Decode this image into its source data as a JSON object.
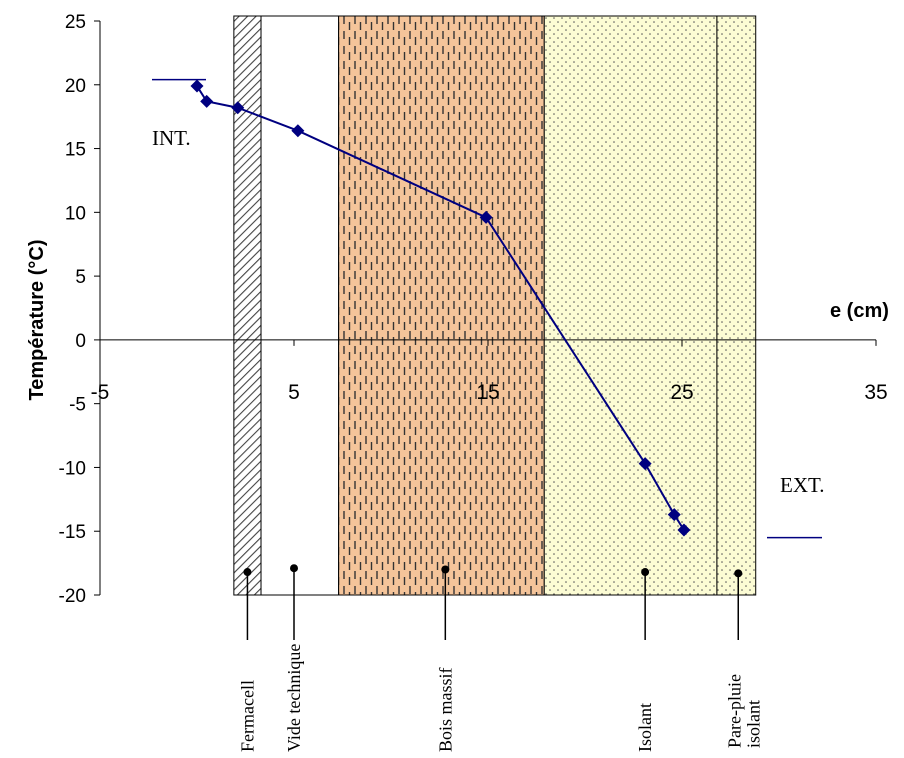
{
  "chart_data": {
    "type": "line",
    "title": "",
    "xlabel": "e (cm)",
    "ylabel": "Température (°C)",
    "xlim": [
      -5,
      35
    ],
    "ylim": [
      -20,
      25
    ],
    "x_ticks": [
      "-5",
      "5",
      "15",
      "25",
      "35"
    ],
    "y_ticks": [
      "25",
      "20",
      "15",
      "10",
      "5",
      "0",
      "-5",
      "-10",
      "-15",
      "-20"
    ],
    "grid": false,
    "series": [
      {
        "name": "",
        "color": "#000080",
        "x": [
          0,
          0.5,
          2.1,
          5.2,
          14.9,
          23.1,
          24.6,
          25.1
        ],
        "y": [
          19.9,
          18.7,
          18.2,
          16.4,
          9.6,
          -9.7,
          -13.7,
          -14.9
        ]
      }
    ],
    "layers": [
      {
        "name": "Fermacell",
        "x_start": 1.9,
        "x_end": 3.3,
        "fill": "#ffffff",
        "pattern": "hatch",
        "marker_x": 2.6,
        "marker_y": -18.2
      },
      {
        "name": "Vide technique",
        "x_start": 3.3,
        "x_end": 7.3,
        "fill": "#ffffff",
        "pattern": "none",
        "marker_x": 5.0,
        "marker_y": -17.9
      },
      {
        "name": "Bois massif",
        "x_start": 7.3,
        "x_end": 17.9,
        "fill": "#f4c49a",
        "pattern": "dashes",
        "marker_x": 12.8,
        "marker_y": -18.0
      },
      {
        "name": "Isolant",
        "x_start": 17.9,
        "x_end": 26.8,
        "fill": "#fcfcd4",
        "pattern": "dots",
        "marker_x": 23.1,
        "marker_y": -18.2
      },
      {
        "name": "Pare-pluie isolant",
        "x_start": 26.8,
        "x_end": 28.8,
        "fill": "#fcfcd4",
        "pattern": "dots",
        "marker_x": 27.9,
        "marker_y": -18.3
      }
    ],
    "annotations": {
      "interior": "INT.",
      "exterior": "EXT.",
      "interior_temp_y": 20.4,
      "exterior_temp_y": -15.5
    }
  }
}
